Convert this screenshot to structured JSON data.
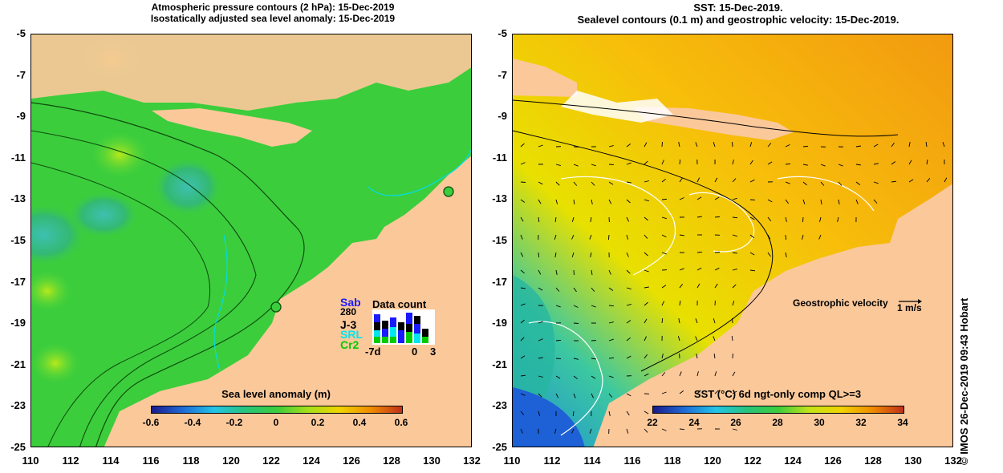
{
  "left_map": {
    "title_line1": "Atmospheric pressure contours (2 hPa): 15-Dec-2019",
    "title_line2": "Isostatically adjusted sea level anomaly: 15-Dec-2019",
    "colorbar_title": "Sea level anomaly (m)",
    "colorbar_ticks": [
      "-0.6",
      "-0.4",
      "-0.2",
      "0",
      "0.2",
      "0.4",
      "0.6"
    ],
    "colorbar_range": [
      -0.6,
      0.6
    ],
    "data_count": {
      "title": "Data count",
      "satellites": [
        {
          "label": "Sab",
          "color": "#1a1aff"
        },
        {
          "label": "J-3",
          "color": "#000000"
        },
        {
          "label": "SRL",
          "color": "#00e5ee"
        },
        {
          "label": "Cr2",
          "color": "#00cc00"
        }
      ],
      "sab_count": "280",
      "axis_labels": [
        "-7d",
        "0",
        "3"
      ]
    }
  },
  "right_map": {
    "title_line1": "SST: 15-Dec-2019.",
    "title_line2": "Sealevel contours (0.1 m) and geostrophic velocity: 15-Dec-2019.",
    "colorbar_title": "SST (°C) 6d ngt-only comp QL>=3",
    "colorbar_ticks": [
      "22",
      "24",
      "26",
      "28",
      "30",
      "32",
      "34"
    ],
    "colorbar_range": [
      22,
      34
    ],
    "velocity_label": "Geostrophic velocity",
    "velocity_scale": "1 m/s"
  },
  "axes": {
    "lat_ticks": [
      "-5",
      "-7",
      "-9",
      "-11",
      "-13",
      "-15",
      "-17",
      "-19",
      "-21",
      "-23",
      "-25"
    ],
    "lon_ticks": [
      "110",
      "112",
      "114",
      "116",
      "118",
      "120",
      "122",
      "124",
      "126",
      "128",
      "130",
      "132"
    ]
  },
  "credit": "© IMOS 26-Dec-2019 09:43 Hobart",
  "colors": {
    "land": "#fbc89a",
    "ocean_green": "#3cd43c",
    "sst_orange": "#f7a40a",
    "sst_yellow": "#e8e000"
  }
}
